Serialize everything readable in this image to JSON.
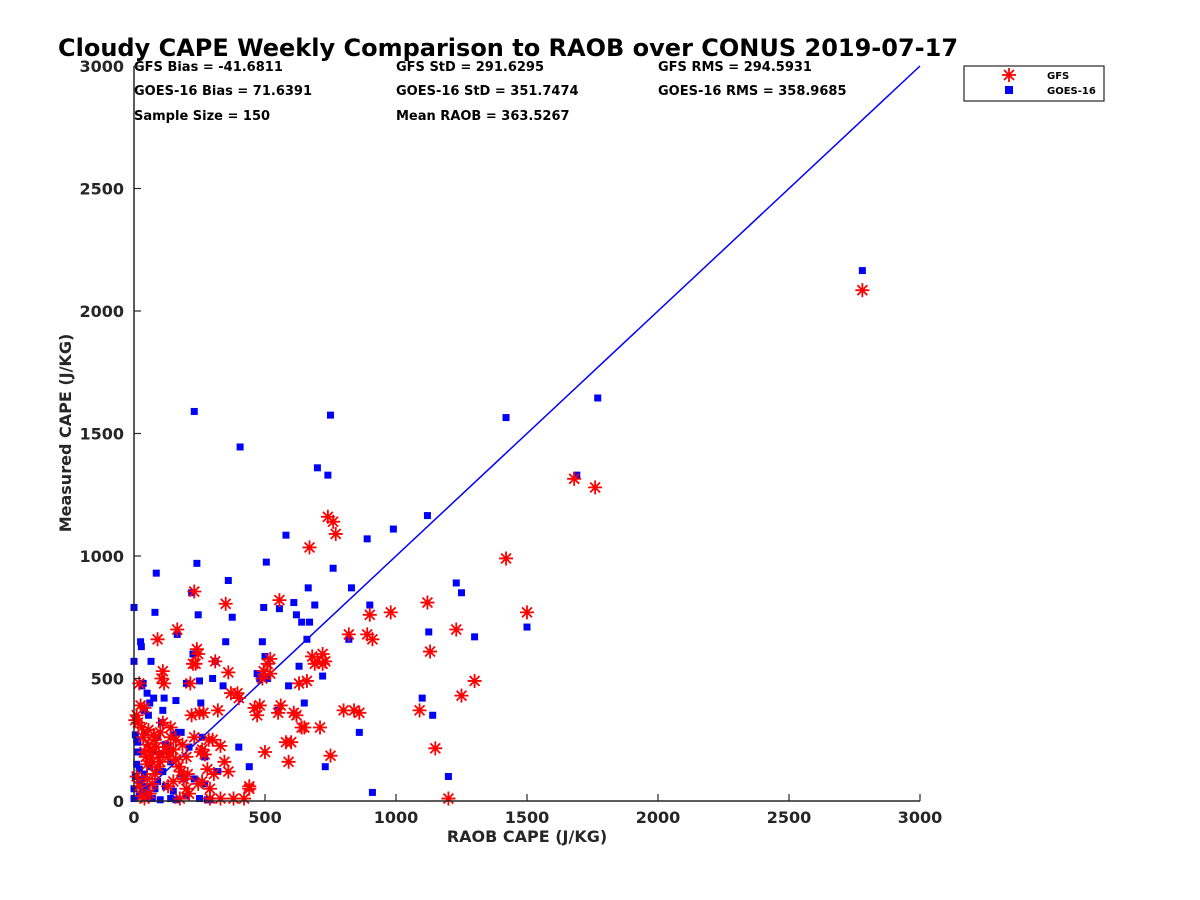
{
  "chart_data": {
    "type": "scatter",
    "title": "Cloudy CAPE Weekly Comparison to RAOB over CONUS 2019-07-17",
    "xlabel": "RAOB CAPE (J/KG)",
    "ylabel": "Measured CAPE (J/KG)",
    "xlim": [
      0,
      3000
    ],
    "ylim": [
      0,
      3000
    ],
    "xticks": [
      0,
      500,
      1000,
      1500,
      2000,
      2500,
      3000
    ],
    "yticks": [
      0,
      500,
      1000,
      1500,
      2000,
      2500,
      3000
    ],
    "grid": false,
    "legend_position": "top-right, outside plot",
    "stats": [
      "GFS Bias = -41.6811",
      "GFS StD = 291.6295",
      "GFS RMS = 294.5931",
      "GOES-16 Bias = 71.6391",
      "GOES-16 StD = 351.7474",
      "GOES-16 RMS = 358.9685",
      "Sample Size = 150",
      "Mean RAOB = 363.5267"
    ],
    "reference_line": {
      "x": [
        0,
        3000
      ],
      "y": [
        0,
        3000
      ],
      "color": "#0000ff"
    },
    "series": [
      {
        "name": "GFS",
        "marker": "asterisk",
        "color": "#ff0000",
        "points": [
          [
            5,
            330
          ],
          [
            10,
            350
          ],
          [
            15,
            320
          ],
          [
            20,
            480
          ],
          [
            25,
            390
          ],
          [
            30,
            300
          ],
          [
            35,
            260
          ],
          [
            40,
            200
          ],
          [
            45,
            180
          ],
          [
            50,
            150
          ],
          [
            55,
            230
          ],
          [
            60,
            210
          ],
          [
            65,
            190
          ],
          [
            70,
            160
          ],
          [
            80,
            250
          ],
          [
            85,
            220
          ],
          [
            90,
            660
          ],
          [
            95,
            190
          ],
          [
            100,
            280
          ],
          [
            105,
            500
          ],
          [
            110,
            530
          ],
          [
            115,
            480
          ],
          [
            120,
            220
          ],
          [
            125,
            200
          ],
          [
            130,
            180
          ],
          [
            140,
            260
          ],
          [
            150,
            210
          ],
          [
            160,
            170
          ],
          [
            165,
            700
          ],
          [
            170,
            140
          ],
          [
            180,
            120
          ],
          [
            190,
            90
          ],
          [
            200,
            50
          ],
          [
            210,
            30
          ],
          [
            215,
            480
          ],
          [
            220,
            350
          ],
          [
            225,
            560
          ],
          [
            230,
            855
          ],
          [
            240,
            620
          ],
          [
            245,
            600
          ],
          [
            250,
            360
          ],
          [
            255,
            200
          ],
          [
            260,
            210
          ],
          [
            270,
            190
          ],
          [
            280,
            130
          ],
          [
            290,
            50
          ],
          [
            300,
            250
          ],
          [
            310,
            570
          ],
          [
            320,
            370
          ],
          [
            330,
            225
          ],
          [
            350,
            805
          ],
          [
            360,
            525
          ],
          [
            370,
            440
          ],
          [
            380,
            10
          ],
          [
            400,
            420
          ],
          [
            420,
            10
          ],
          [
            440,
            50
          ],
          [
            460,
            380
          ],
          [
            470,
            350
          ],
          [
            490,
            500
          ],
          [
            495,
            530
          ],
          [
            500,
            200
          ],
          [
            510,
            560
          ],
          [
            520,
            580
          ],
          [
            550,
            360
          ],
          [
            555,
            820
          ],
          [
            560,
            390
          ],
          [
            580,
            240
          ],
          [
            590,
            160
          ],
          [
            600,
            240
          ],
          [
            610,
            360
          ],
          [
            620,
            350
          ],
          [
            630,
            480
          ],
          [
            650,
            300
          ],
          [
            660,
            490
          ],
          [
            670,
            1035
          ],
          [
            680,
            590
          ],
          [
            700,
            570
          ],
          [
            710,
            300
          ],
          [
            720,
            560
          ],
          [
            730,
            570
          ],
          [
            740,
            1160
          ],
          [
            750,
            185
          ],
          [
            760,
            1140
          ],
          [
            770,
            1090
          ],
          [
            800,
            370
          ],
          [
            820,
            680
          ],
          [
            840,
            370
          ],
          [
            860,
            360
          ],
          [
            890,
            680
          ],
          [
            900,
            760
          ],
          [
            910,
            660
          ],
          [
            980,
            770
          ],
          [
            1090,
            370
          ],
          [
            1120,
            810
          ],
          [
            1130,
            610
          ],
          [
            1150,
            215
          ],
          [
            1200,
            10
          ],
          [
            1230,
            700
          ],
          [
            1250,
            430
          ],
          [
            1300,
            490
          ],
          [
            1420,
            990
          ],
          [
            1500,
            770
          ],
          [
            1680,
            1315
          ],
          [
            1760,
            1280
          ],
          [
            2780,
            2085
          ],
          [
            10,
            100
          ],
          [
            20,
            60
          ],
          [
            30,
            20
          ],
          [
            40,
            10
          ],
          [
            50,
            90
          ],
          [
            60,
            30
          ],
          [
            70,
            70
          ],
          [
            80,
            110
          ],
          [
            90,
            140
          ],
          [
            100,
            160
          ],
          [
            130,
            60
          ],
          [
            150,
            80
          ],
          [
            175,
            10
          ],
          [
            200,
            180
          ],
          [
            230,
            260
          ],
          [
            260,
            80
          ],
          [
            290,
            10
          ],
          [
            330,
            10
          ],
          [
            360,
            120
          ],
          [
            440,
            60
          ],
          [
            480,
            390
          ],
          [
            520,
            520
          ],
          [
            640,
            300
          ],
          [
            690,
            560
          ],
          [
            720,
            600
          ],
          [
            40,
            380
          ],
          [
            55,
            290
          ],
          [
            75,
            270
          ],
          [
            110,
            320
          ],
          [
            140,
            300
          ],
          [
            160,
            250
          ],
          [
            185,
            230
          ],
          [
            205,
            110
          ],
          [
            235,
            560
          ],
          [
            245,
            70
          ],
          [
            265,
            360
          ],
          [
            285,
            250
          ],
          [
            305,
            110
          ],
          [
            345,
            160
          ],
          [
            395,
            440
          ]
        ]
      },
      {
        "name": "GOES-16",
        "marker": "square",
        "color": "#0000ff",
        "points": [
          [
            0,
            570
          ],
          [
            0,
            790
          ],
          [
            5,
            270
          ],
          [
            10,
            250
          ],
          [
            15,
            240
          ],
          [
            20,
            130
          ],
          [
            25,
            650
          ],
          [
            28,
            630
          ],
          [
            30,
            470
          ],
          [
            35,
            480
          ],
          [
            40,
            370
          ],
          [
            45,
            280
          ],
          [
            50,
            440
          ],
          [
            55,
            350
          ],
          [
            60,
            400
          ],
          [
            65,
            570
          ],
          [
            70,
            200
          ],
          [
            75,
            420
          ],
          [
            80,
            770
          ],
          [
            85,
            930
          ],
          [
            90,
            260
          ],
          [
            95,
            120
          ],
          [
            100,
            190
          ],
          [
            105,
            320
          ],
          [
            110,
            370
          ],
          [
            115,
            420
          ],
          [
            120,
            230
          ],
          [
            130,
            220
          ],
          [
            140,
            160
          ],
          [
            150,
            270
          ],
          [
            160,
            410
          ],
          [
            165,
            680
          ],
          [
            170,
            280
          ],
          [
            180,
            110
          ],
          [
            200,
            480
          ],
          [
            210,
            220
          ],
          [
            220,
            850
          ],
          [
            225,
            600
          ],
          [
            230,
            1590
          ],
          [
            240,
            970
          ],
          [
            245,
            760
          ],
          [
            250,
            490
          ],
          [
            255,
            400
          ],
          [
            260,
            260
          ],
          [
            270,
            180
          ],
          [
            290,
            5
          ],
          [
            300,
            500
          ],
          [
            310,
            570
          ],
          [
            320,
            120
          ],
          [
            340,
            470
          ],
          [
            350,
            650
          ],
          [
            360,
            900
          ],
          [
            375,
            750
          ],
          [
            400,
            220
          ],
          [
            405,
            1445
          ],
          [
            440,
            140
          ],
          [
            470,
            520
          ],
          [
            480,
            500
          ],
          [
            490,
            650
          ],
          [
            495,
            790
          ],
          [
            500,
            590
          ],
          [
            505,
            975
          ],
          [
            510,
            500
          ],
          [
            550,
            370
          ],
          [
            555,
            785
          ],
          [
            580,
            1085
          ],
          [
            590,
            470
          ],
          [
            610,
            810
          ],
          [
            620,
            760
          ],
          [
            630,
            550
          ],
          [
            640,
            730
          ],
          [
            650,
            400
          ],
          [
            660,
            660
          ],
          [
            665,
            870
          ],
          [
            670,
            730
          ],
          [
            690,
            800
          ],
          [
            700,
            1360
          ],
          [
            720,
            510
          ],
          [
            730,
            140
          ],
          [
            740,
            1330
          ],
          [
            750,
            1575
          ],
          [
            760,
            950
          ],
          [
            820,
            660
          ],
          [
            830,
            870
          ],
          [
            860,
            280
          ],
          [
            890,
            1070
          ],
          [
            900,
            800
          ],
          [
            910,
            35
          ],
          [
            990,
            1110
          ],
          [
            1100,
            420
          ],
          [
            1120,
            1165
          ],
          [
            1125,
            690
          ],
          [
            1140,
            350
          ],
          [
            1200,
            100
          ],
          [
            1230,
            890
          ],
          [
            1250,
            850
          ],
          [
            1300,
            670
          ],
          [
            1420,
            1565
          ],
          [
            1500,
            710
          ],
          [
            1690,
            1330
          ],
          [
            1770,
            1645
          ],
          [
            2780,
            2165
          ],
          [
            0,
            10
          ],
          [
            0,
            50
          ],
          [
            5,
            100
          ],
          [
            10,
            150
          ],
          [
            15,
            200
          ],
          [
            20,
            20
          ],
          [
            25,
            70
          ],
          [
            30,
            90
          ],
          [
            35,
            40
          ],
          [
            40,
            110
          ],
          [
            45,
            15
          ],
          [
            50,
            60
          ],
          [
            55,
            30
          ],
          [
            60,
            140
          ],
          [
            70,
            10
          ],
          [
            80,
            50
          ],
          [
            90,
            80
          ],
          [
            100,
            5
          ],
          [
            110,
            120
          ],
          [
            120,
            60
          ],
          [
            140,
            10
          ],
          [
            150,
            40
          ],
          [
            160,
            5
          ],
          [
            180,
            280
          ],
          [
            190,
            90
          ],
          [
            200,
            20
          ],
          [
            230,
            90
          ],
          [
            250,
            10
          ],
          [
            270,
            70
          ],
          [
            280,
            5
          ]
        ]
      }
    ]
  }
}
